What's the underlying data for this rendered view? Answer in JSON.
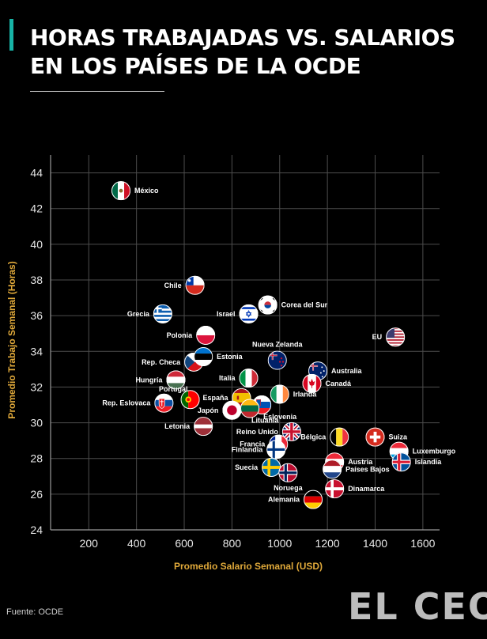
{
  "header": {
    "title_line1": "HORAS TRABAJADAS VS. SALARIOS",
    "title_line2": "EN LOS PAÍSES DE LA OCDE"
  },
  "footer": {
    "source": "Fuente: OCDE",
    "brand": "EL CEO"
  },
  "colors": {
    "accent": "#17b3a6",
    "axis_label": "#e0a93a",
    "grid": "#4d4d4d",
    "background": "#000000"
  },
  "chart_data": {
    "type": "scatter",
    "title": "HORAS TRABAJADAS VS. SALARIOS EN LOS PAÍSES DE LA OCDE",
    "xlabel": "Promedio Salario Semanal (USD)",
    "ylabel": "Promedio Trabajo Semanal (Horas)",
    "xlim": [
      40,
      1670
    ],
    "ylim": [
      24,
      45
    ],
    "xticks": [
      200,
      400,
      600,
      800,
      1000,
      1200,
      1400,
      1600
    ],
    "yticks": [
      24,
      26,
      28,
      30,
      32,
      34,
      36,
      38,
      40,
      42,
      44
    ],
    "grid": true,
    "points": [
      {
        "label": "México",
        "x": 335,
        "y": 43.0,
        "flag": "mexico",
        "side": "right"
      },
      {
        "label": "Chile",
        "x": 645,
        "y": 37.7,
        "flag": "chile",
        "side": "left"
      },
      {
        "label": "Grecia",
        "x": 510,
        "y": 36.1,
        "flag": "greece",
        "side": "left"
      },
      {
        "label": "Israel",
        "x": 870,
        "y": 36.1,
        "flag": "israel",
        "side": "left"
      },
      {
        "label": "Corea del Sur",
        "x": 950,
        "y": 36.6,
        "flag": "korea",
        "side": "right"
      },
      {
        "label": "Polonia",
        "x": 690,
        "y": 34.9,
        "flag": "poland",
        "side": "left"
      },
      {
        "label": "EU",
        "x": 1485,
        "y": 34.8,
        "flag": "usa",
        "side": "left"
      },
      {
        "label": "Rep. Checa",
        "x": 640,
        "y": 33.4,
        "flag": "czech",
        "side": "left"
      },
      {
        "label": "Estonia",
        "x": 680,
        "y": 33.7,
        "flag": "estonia",
        "side": "right"
      },
      {
        "label": "Nueva Zelanda",
        "x": 990,
        "y": 33.5,
        "flag": "newzealand",
        "side": "above"
      },
      {
        "label": "Australia",
        "x": 1160,
        "y": 32.9,
        "flag": "australia",
        "side": "right"
      },
      {
        "label": "Italia",
        "x": 870,
        "y": 32.5,
        "flag": "italy",
        "side": "left"
      },
      {
        "label": "Hungría",
        "x": 565,
        "y": 32.4,
        "flag": "hungary",
        "side": "left"
      },
      {
        "label": "Canadá",
        "x": 1135,
        "y": 32.2,
        "flag": "canada",
        "side": "right"
      },
      {
        "label": "Portugal",
        "x": 625,
        "y": 31.3,
        "flag": "portugal",
        "side": "aboveleft"
      },
      {
        "label": "España",
        "x": 840,
        "y": 31.4,
        "flag": "spain",
        "side": "left"
      },
      {
        "label": "Irlanda",
        "x": 1000,
        "y": 31.6,
        "flag": "ireland",
        "side": "right"
      },
      {
        "label": "Rep. Eslovaca",
        "x": 515,
        "y": 31.1,
        "flag": "slovakia",
        "side": "left"
      },
      {
        "label": "Eslovenia",
        "x": 925,
        "y": 31.0,
        "flag": "slovenia",
        "side": "belowright"
      },
      {
        "label": "Japón",
        "x": 800,
        "y": 30.7,
        "flag": "japan",
        "side": "left"
      },
      {
        "label": "Lituania",
        "x": 875,
        "y": 30.8,
        "flag": "lithuania",
        "side": "belowright"
      },
      {
        "label": "Letonia",
        "x": 680,
        "y": 29.8,
        "flag": "latvia",
        "side": "left"
      },
      {
        "label": "Reino Unido",
        "x": 1050,
        "y": 29.5,
        "flag": "uk",
        "side": "left"
      },
      {
        "label": "Bélgica",
        "x": 1250,
        "y": 29.2,
        "flag": "belgium",
        "side": "left"
      },
      {
        "label": "Suiza",
        "x": 1400,
        "y": 29.2,
        "flag": "switzerland",
        "side": "right"
      },
      {
        "label": "Francia",
        "x": 995,
        "y": 28.8,
        "flag": "france",
        "side": "left"
      },
      {
        "label": "Finlandia",
        "x": 985,
        "y": 28.5,
        "flag": "finland",
        "side": "left"
      },
      {
        "label": "Luxemburgo",
        "x": 1500,
        "y": 28.4,
        "flag": "luxembourg",
        "side": "right"
      },
      {
        "label": "Islandia",
        "x": 1510,
        "y": 27.8,
        "flag": "iceland",
        "side": "right"
      },
      {
        "label": "Austria",
        "x": 1230,
        "y": 27.8,
        "flag": "austria",
        "side": "right"
      },
      {
        "label": "Suecia",
        "x": 965,
        "y": 27.5,
        "flag": "sweden",
        "side": "left"
      },
      {
        "label": "Países Bajos",
        "x": 1220,
        "y": 27.4,
        "flag": "netherlands",
        "side": "right"
      },
      {
        "label": "Noruega",
        "x": 1035,
        "y": 27.2,
        "flag": "norway",
        "side": "below"
      },
      {
        "label": "Dinamarca",
        "x": 1230,
        "y": 26.3,
        "flag": "denmark",
        "side": "right"
      },
      {
        "label": "Alemania",
        "x": 1140,
        "y": 25.7,
        "flag": "germany",
        "side": "left"
      }
    ]
  }
}
